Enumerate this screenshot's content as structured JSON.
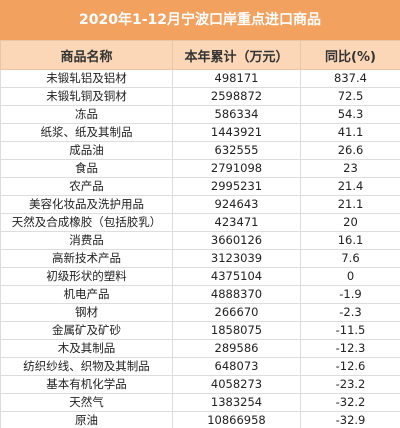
{
  "title": "2020年1-12月宁波口岸重点进口商品",
  "table": {
    "header": [
      "商品名称",
      "本年累计（万元）",
      "同比(%)"
    ],
    "rows": [
      [
        "未锻轧铝及铝材",
        498171,
        837.4
      ],
      [
        "未锻轧铜及铜材",
        2598872,
        72.5
      ],
      [
        "冻品",
        586334,
        54.3
      ],
      [
        "纸浆、纸及其制品",
        1443921,
        41.1
      ],
      [
        "成品油",
        632555,
        26.6
      ],
      [
        "食品",
        2791098,
        23
      ],
      [
        "农产品",
        2995231,
        21.4
      ],
      [
        "美容化妆品及洗护用品",
        924643,
        21.1
      ],
      [
        "天然及合成橡胶（包括胶乳）",
        423471,
        20
      ],
      [
        "消费品",
        3660126,
        16.1
      ],
      [
        "高新技术产品",
        3123039,
        7.6
      ],
      [
        "初级形状的塑料",
        4375104,
        0
      ],
      [
        "机电产品",
        4888370,
        -1.9
      ],
      [
        "钢材",
        266670,
        -2.3
      ],
      [
        "金属矿及矿砂",
        1858075,
        -11.5
      ],
      [
        "木及其制品",
        289586,
        -12.3
      ],
      [
        "纺织纱线、织物及其制品",
        648073,
        -12.6
      ],
      [
        "基本有机化学品",
        4058273,
        -23.2
      ],
      [
        "天然气",
        1383254,
        -32.2
      ],
      [
        "原油",
        10866958,
        -32.9
      ]
    ]
  }
}
